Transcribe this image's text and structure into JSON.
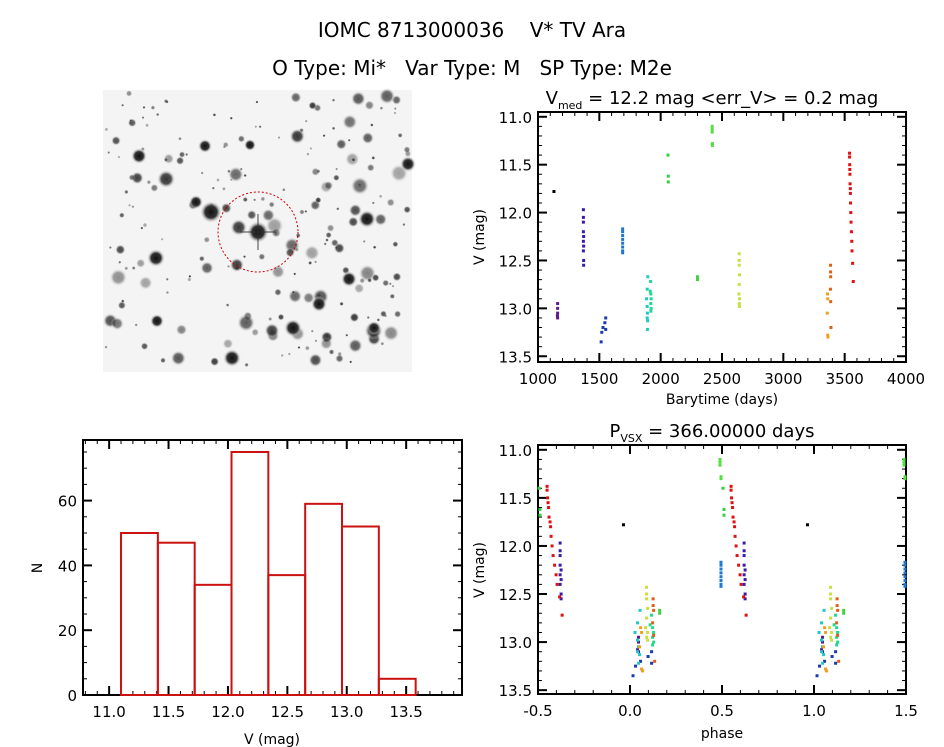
{
  "header": {
    "title": "IOMC 8713000036    V* TV Ara",
    "subtitle": "O Type: Mi*   Var Type: M   SP Type: M2e"
  },
  "chart_data": [
    {
      "type": "image",
      "description_label": "",
      "aperture_circle_color": "#cc0000"
    },
    {
      "type": "scatter",
      "title_main": "V",
      "title_sub": "med",
      "title_rest": " = 12.2 mag <err_V> = 0.2 mag",
      "xlabel": "Barytime (days)",
      "ylabel": "V (mag)",
      "xlim": [
        1000,
        4000
      ],
      "ylim": [
        13.56,
        10.95
      ],
      "y_inverted": true,
      "xticks": [
        "1000",
        "1500",
        "2000",
        "2500",
        "3000",
        "3500",
        "4000"
      ],
      "yticks": [
        "11.0",
        "11.5",
        "12.0",
        "12.5",
        "13.0",
        "13.5"
      ],
      "series": [
        {
          "color": "#000000",
          "points": [
            [
              1130,
              11.78
            ]
          ]
        },
        {
          "color": "#5a1a8a",
          "points": [
            [
              1160,
              12.95
            ],
            [
              1160,
              13.0
            ],
            [
              1160,
              13.05
            ],
            [
              1158,
              13.08
            ],
            [
              1160,
              13.1
            ]
          ]
        },
        {
          "color": "#3a1aa8",
          "points": [
            [
              1370,
              11.97
            ],
            [
              1370,
              12.05
            ],
            [
              1370,
              12.1
            ],
            [
              1370,
              12.2
            ],
            [
              1372,
              12.25
            ],
            [
              1370,
              12.3
            ],
            [
              1372,
              12.35
            ],
            [
              1370,
              12.4
            ],
            [
              1372,
              12.5
            ],
            [
              1372,
              12.55
            ]
          ]
        },
        {
          "color": "#1a3ab0",
          "points": [
            [
              1515,
              13.35
            ],
            [
              1520,
              13.25
            ],
            [
              1530,
              13.2
            ],
            [
              1545,
              13.15
            ],
            [
              1552,
              13.22
            ],
            [
              1552,
              13.1
            ]
          ]
        },
        {
          "color": "#1e78d0",
          "points": [
            [
              1690,
              12.17
            ],
            [
              1690,
              12.2
            ],
            [
              1690,
              12.24
            ],
            [
              1690,
              12.28
            ],
            [
              1690,
              12.32
            ],
            [
              1690,
              12.36
            ],
            [
              1690,
              12.4
            ],
            [
              1690,
              12.42
            ]
          ]
        },
        {
          "color": "#20c8c8",
          "points": [
            [
              1885,
              12.9
            ],
            [
              1890,
              12.8
            ],
            [
              1890,
              12.98
            ],
            [
              1892,
              13.05
            ],
            [
              1890,
              13.1
            ],
            [
              1894,
              13.13
            ],
            [
              1892,
              13.22
            ],
            [
              1895,
              12.67
            ]
          ]
        },
        {
          "color": "#20d890",
          "points": [
            [
              1918,
              12.72
            ],
            [
              1920,
              12.85
            ],
            [
              1922,
              12.9
            ],
            [
              1920,
              12.95
            ],
            [
              1922,
              13.0
            ],
            [
              1920,
              13.03
            ],
            [
              1915,
              12.82
            ]
          ]
        },
        {
          "color": "#30d040",
          "points": [
            [
              2060,
              11.4
            ],
            [
              2062,
              11.62
            ],
            [
              2062,
              11.68
            ]
          ]
        },
        {
          "color": "#40d040",
          "points": [
            [
              2300,
              12.67
            ],
            [
              2300,
              12.7
            ]
          ]
        },
        {
          "color": "#50e040",
          "points": [
            [
              2420,
              11.1
            ],
            [
              2420,
              11.13
            ],
            [
              2420,
              11.16
            ],
            [
              2422,
              11.28
            ],
            [
              2422,
              11.3
            ]
          ]
        },
        {
          "color": "#c8e040",
          "points": [
            [
              2640,
              12.43
            ],
            [
              2640,
              12.5
            ],
            [
              2640,
              12.55
            ],
            [
              2642,
              12.65
            ],
            [
              2640,
              12.75
            ],
            [
              2638,
              12.85
            ],
            [
              2642,
              12.9
            ],
            [
              2640,
              12.95
            ],
            [
              2642,
              12.98
            ]
          ]
        },
        {
          "color": "#f0a020",
          "points": [
            [
              3360,
              12.85
            ],
            [
              3362,
              12.9
            ],
            [
              3358,
              13.05
            ],
            [
              3362,
              13.28
            ],
            [
              3364,
              13.3
            ]
          ]
        },
        {
          "color": "#e06018",
          "points": [
            [
              3385,
              12.55
            ],
            [
              3385,
              12.62
            ],
            [
              3386,
              12.67
            ],
            [
              3384,
              12.8
            ],
            [
              3386,
              12.93
            ],
            [
              3388,
              13.2
            ]
          ]
        },
        {
          "color": "#e01010",
          "points": [
            [
              3540,
              11.38
            ],
            [
              3540,
              11.42
            ],
            [
              3541,
              11.5
            ],
            [
              3542,
              11.55
            ],
            [
              3543,
              11.6
            ],
            [
              3544,
              11.7
            ],
            [
              3546,
              11.75
            ],
            [
              3547,
              11.8
            ],
            [
              3548,
              11.9
            ],
            [
              3550,
              12.0
            ],
            [
              3552,
              12.1
            ],
            [
              3555,
              12.2
            ],
            [
              3558,
              12.3
            ],
            [
              3560,
              12.4
            ],
            [
              3565,
              12.53
            ],
            [
              3570,
              12.72
            ]
          ]
        }
      ]
    },
    {
      "type": "bar",
      "xlabel": "V (mag)",
      "ylabel": "N",
      "xlim": [
        10.78,
        13.97
      ],
      "ylim": [
        0,
        78.7
      ],
      "xticks": [
        "11.0",
        "11.5",
        "12.0",
        "12.5",
        "13.0",
        "13.5"
      ],
      "yticks": [
        "0",
        "20",
        "40",
        "60"
      ],
      "bar_color": "#cc1111",
      "bin_edges": [
        11.1,
        11.41,
        11.72,
        12.03,
        12.34,
        12.65,
        12.96,
        13.27,
        13.58
      ],
      "values": [
        50,
        47,
        34,
        75,
        37,
        59,
        52,
        5
      ]
    },
    {
      "type": "scatter",
      "title_main": "P",
      "title_sub": "VSX",
      "title_rest": " = 366.00000 days",
      "period_days": 366.0,
      "xlabel": "phase",
      "ylabel": "V (mag)",
      "xlim": [
        -0.5,
        1.5
      ],
      "ylim": [
        13.54,
        10.95
      ],
      "y_inverted": true,
      "xticks": [
        "-0.5",
        "0.0",
        "0.5",
        "1.0",
        "1.5"
      ],
      "yticks": [
        "11.0",
        "11.5",
        "12.0",
        "12.5",
        "13.0",
        "13.5"
      ]
    }
  ]
}
